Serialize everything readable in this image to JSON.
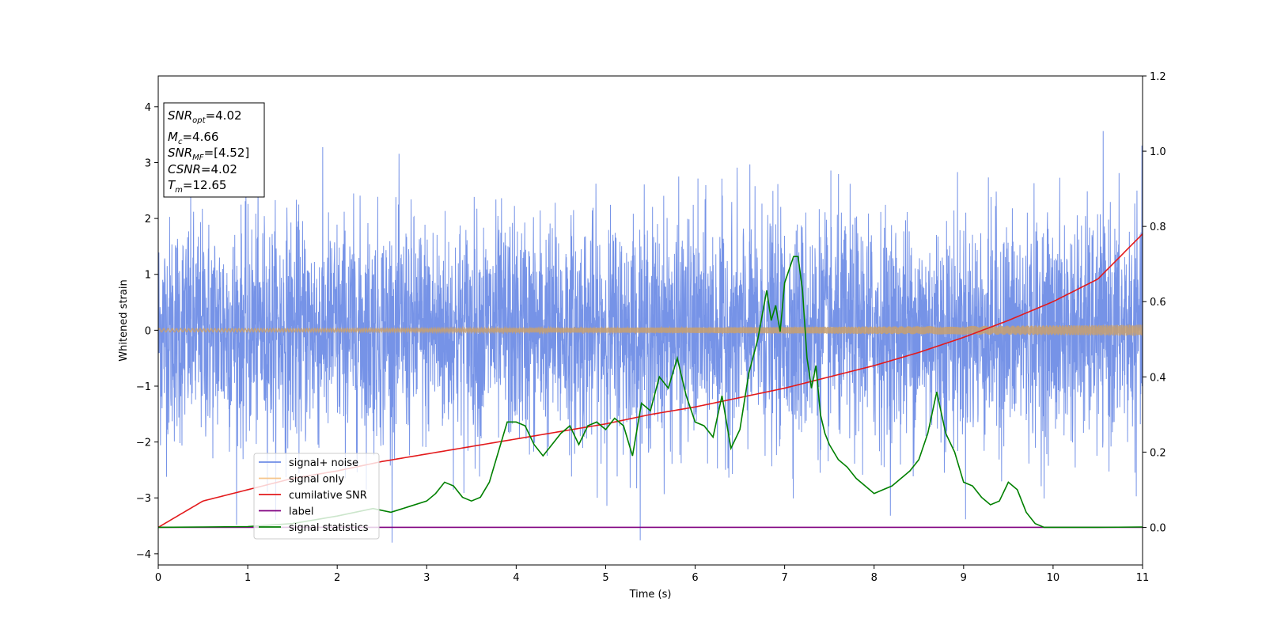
{
  "chart_data": {
    "type": "line",
    "xlabel": "Time (s)",
    "ylabel": "Whitened strain",
    "xlim": [
      0,
      11
    ],
    "ylim_left": [
      -4.2,
      4.55
    ],
    "ylim_right": [
      -0.1,
      1.2
    ],
    "x_ticks": [
      "0",
      "1",
      "2",
      "3",
      "4",
      "5",
      "6",
      "7",
      "8",
      "9",
      "10",
      "11"
    ],
    "y_ticks_left": [
      "−4",
      "−3",
      "−2",
      "−1",
      "0",
      "1",
      "2",
      "3",
      "4"
    ],
    "y_ticks_right": [
      "0.0",
      "0.2",
      "0.4",
      "0.6",
      "0.8",
      "1.0",
      "1.2"
    ],
    "legend_position": "lower-left",
    "annotation": {
      "snr_opt": {
        "main": "SNR",
        "sub": "opt",
        "value": "=4.02"
      },
      "mc": {
        "main": "M",
        "sub": "c",
        "value": "=4.66"
      },
      "snr_mf": {
        "main": "SNR",
        "sub": "MF",
        "value": "=[4.52]"
      },
      "csnr": {
        "main": "CSNR",
        "value": "=4.02"
      },
      "tm": {
        "main": "T",
        "sub": "m",
        "value": "=12.65"
      }
    },
    "series": [
      {
        "name": "signal+ noise",
        "axis": "left",
        "color": "#6f8de6",
        "style": "dense noise, approx. Gaussian, sigma ~1, peaks to about +4.2 / -3.8"
      },
      {
        "name": "signal only",
        "axis": "left",
        "color": "#f5c48a",
        "amplitude_t": [
          0,
          11
        ],
        "amplitude_range": [
          0.03,
          0.1
        ]
      },
      {
        "name": "cumilative SNR",
        "axis": "right",
        "color": "#e31a1c",
        "x": [
          0,
          0.5,
          1,
          1.5,
          2,
          2.5,
          3,
          3.5,
          4,
          4.5,
          5,
          5.5,
          6,
          6.5,
          7,
          7.5,
          8,
          8.5,
          9,
          9.5,
          10,
          10.5,
          11
        ],
        "y": [
          0.0,
          0.07,
          0.1,
          0.13,
          0.15,
          0.175,
          0.195,
          0.215,
          0.235,
          0.255,
          0.275,
          0.3,
          0.32,
          0.345,
          0.37,
          0.4,
          0.43,
          0.465,
          0.505,
          0.55,
          0.6,
          0.66,
          0.78
        ]
      },
      {
        "name": "label",
        "axis": "right",
        "color": "#800080",
        "x": [
          0,
          11
        ],
        "y": [
          0.0,
          0.0
        ]
      },
      {
        "name": "signal statistics",
        "axis": "right",
        "color": "#008000",
        "x": [
          0,
          0.5,
          1,
          1.5,
          2,
          2.2,
          2.4,
          2.6,
          2.8,
          3.0,
          3.1,
          3.2,
          3.3,
          3.4,
          3.5,
          3.6,
          3.7,
          3.8,
          3.9,
          4.0,
          4.1,
          4.2,
          4.3,
          4.4,
          4.5,
          4.6,
          4.7,
          4.8,
          4.9,
          5.0,
          5.1,
          5.2,
          5.3,
          5.4,
          5.5,
          5.6,
          5.7,
          5.8,
          5.9,
          6.0,
          6.1,
          6.2,
          6.3,
          6.4,
          6.5,
          6.6,
          6.7,
          6.8,
          6.85,
          6.9,
          6.95,
          7.0,
          7.1,
          7.15,
          7.2,
          7.25,
          7.3,
          7.35,
          7.4,
          7.45,
          7.5,
          7.6,
          7.7,
          7.8,
          7.9,
          8.0,
          8.1,
          8.2,
          8.3,
          8.4,
          8.5,
          8.6,
          8.7,
          8.8,
          8.9,
          9.0,
          9.1,
          9.2,
          9.3,
          9.4,
          9.5,
          9.6,
          9.7,
          9.8,
          9.9,
          10.0,
          10.5,
          11
        ],
        "y": [
          0.0,
          0.001,
          0.002,
          0.01,
          0.03,
          0.04,
          0.05,
          0.04,
          0.055,
          0.07,
          0.09,
          0.12,
          0.11,
          0.08,
          0.07,
          0.08,
          0.12,
          0.2,
          0.28,
          0.28,
          0.27,
          0.22,
          0.19,
          0.22,
          0.25,
          0.27,
          0.22,
          0.27,
          0.28,
          0.26,
          0.29,
          0.27,
          0.19,
          0.33,
          0.31,
          0.4,
          0.37,
          0.45,
          0.35,
          0.28,
          0.27,
          0.24,
          0.35,
          0.21,
          0.26,
          0.41,
          0.5,
          0.63,
          0.55,
          0.59,
          0.52,
          0.65,
          0.72,
          0.72,
          0.63,
          0.45,
          0.37,
          0.43,
          0.3,
          0.25,
          0.22,
          0.18,
          0.16,
          0.13,
          0.11,
          0.09,
          0.1,
          0.11,
          0.13,
          0.15,
          0.18,
          0.25,
          0.36,
          0.25,
          0.2,
          0.12,
          0.11,
          0.08,
          0.06,
          0.07,
          0.12,
          0.1,
          0.04,
          0.01,
          0.0,
          0.0,
          0.0,
          0.001
        ]
      }
    ]
  }
}
